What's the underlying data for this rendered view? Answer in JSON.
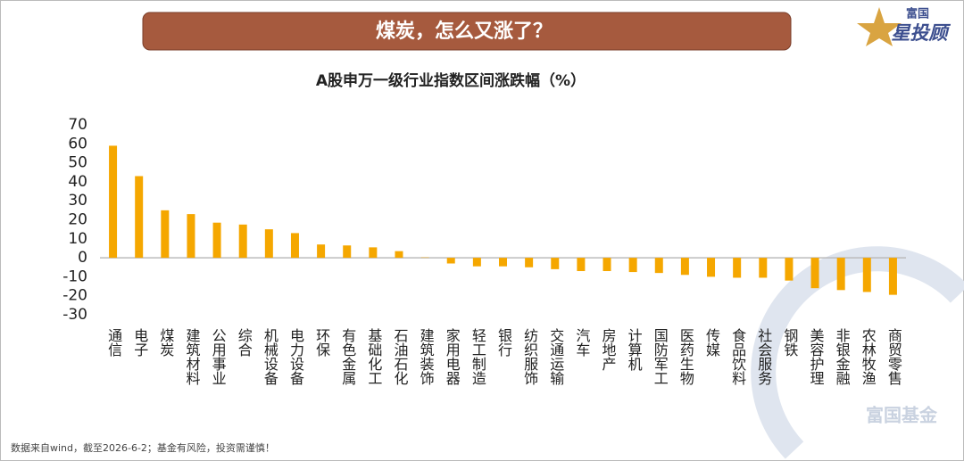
{
  "header": {
    "banner": "煤炭，怎么又涨了？",
    "logo_top": "富国",
    "logo_main": "星投顾"
  },
  "chart_data": {
    "type": "bar",
    "title": "A股申万一级行业指数区间涨跌幅（%）",
    "categories": [
      "通信",
      "电子",
      "煤炭",
      "建筑材料",
      "公用事业",
      "综合",
      "机械设备",
      "电力设备",
      "环保",
      "有色金属",
      "基础化工",
      "石油石化",
      "建筑装饰",
      "家用电器",
      "轻工制造",
      "银行",
      "纺织服饰",
      "交通运输",
      "汽车",
      "房地产",
      "计算机",
      "国防军工",
      "医药生物",
      "传媒",
      "食品饮料",
      "社会服务",
      "钢铁",
      "美容护理",
      "非银金融",
      "农林牧渔",
      "商贸零售"
    ],
    "values": [
      59,
      43,
      25,
      23,
      18.5,
      17.5,
      15,
      13,
      7,
      6.5,
      5.5,
      3.5,
      0.2,
      -3,
      -4.5,
      -4.5,
      -5,
      -6,
      -7,
      -7,
      -7.5,
      -8,
      -9,
      -10,
      -10.5,
      -10.5,
      -12,
      -16,
      -17,
      -18,
      -19.5
    ],
    "color": "#f5a700",
    "ylim": [
      -30,
      70
    ],
    "yticks": [
      -30,
      -20,
      -10,
      0,
      10,
      20,
      30,
      40,
      50,
      60,
      70
    ]
  },
  "footer": {
    "note": "数据来自wind，截至2026-6-2；基金有风险，投资需谨慎！",
    "watermark": "富国基金"
  }
}
